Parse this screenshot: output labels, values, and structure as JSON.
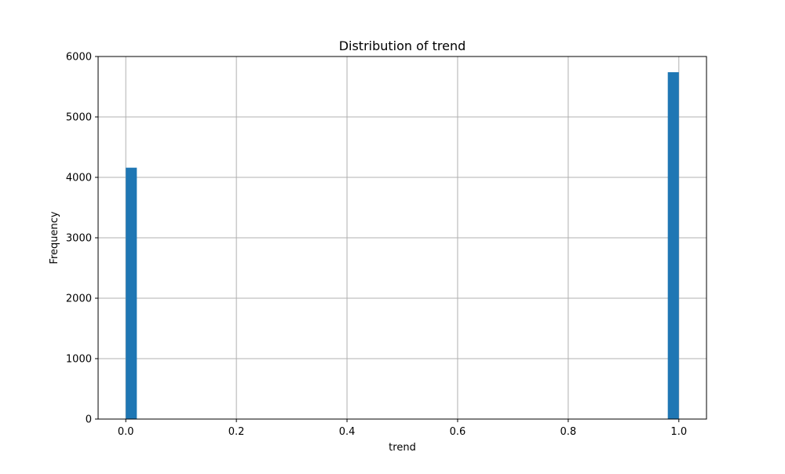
{
  "chart_data": {
    "type": "bar",
    "title": "Distribution of trend",
    "xlabel": "trend",
    "ylabel": "Frequency",
    "xlim": [
      -0.05,
      1.05
    ],
    "ylim": [
      0,
      6000
    ],
    "xticks": [
      0.0,
      0.2,
      0.4,
      0.6,
      0.8,
      1.0
    ],
    "xtick_labels": [
      "0.0",
      "0.2",
      "0.4",
      "0.6",
      "0.8",
      "1.0"
    ],
    "yticks": [
      0,
      1000,
      2000,
      3000,
      4000,
      5000,
      6000
    ],
    "ytick_labels": [
      "0",
      "1000",
      "2000",
      "3000",
      "4000",
      "5000",
      "6000"
    ],
    "grid": true,
    "bar_color": "#1f77b4",
    "bins": [
      {
        "x_start": 0.0,
        "x_end": 0.02,
        "value": 4160
      },
      {
        "x_start": 0.98,
        "x_end": 1.0,
        "value": 5740
      }
    ]
  }
}
